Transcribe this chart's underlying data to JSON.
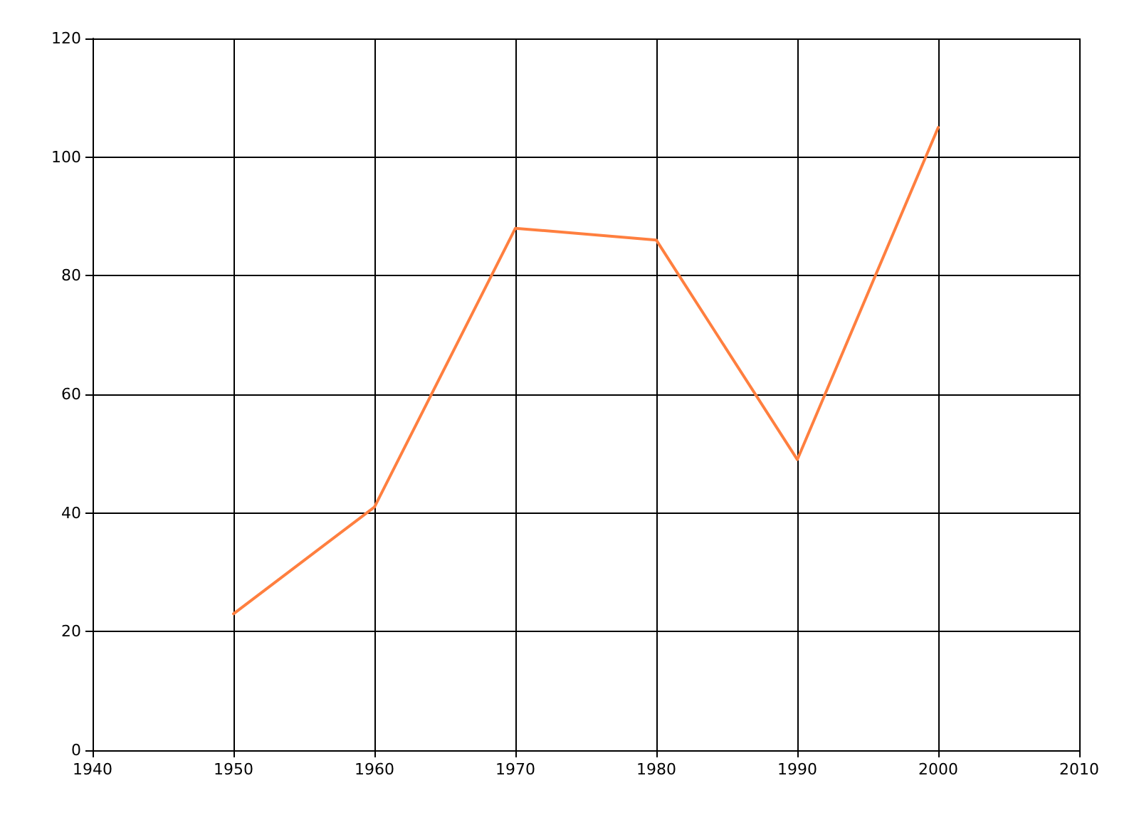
{
  "chart_data": {
    "type": "line",
    "x": [
      1950,
      1960,
      1970,
      1980,
      1990,
      2000
    ],
    "series": [
      {
        "color": "#ff7f3f",
        "values": [
          23,
          41,
          88,
          86,
          49,
          105
        ]
      }
    ],
    "xlim": [
      1940,
      2010
    ],
    "xticks": [
      1940,
      1950,
      1960,
      1970,
      1980,
      1990,
      2000,
      2010
    ],
    "ylim": [
      0,
      120
    ],
    "yticks": [
      0,
      20,
      40,
      60,
      80,
      100,
      120
    ],
    "grid": true,
    "marker": "none",
    "line_style": "solid"
  }
}
